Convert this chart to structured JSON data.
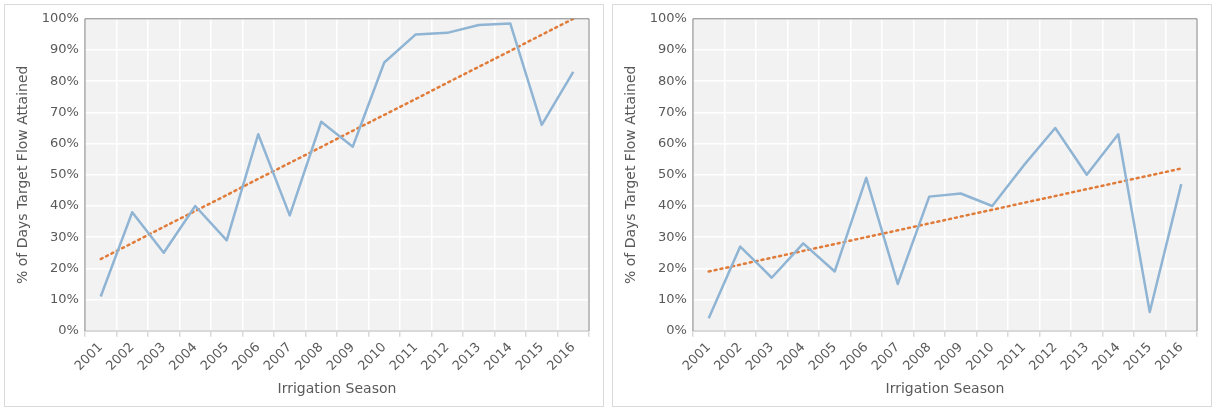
{
  "chart_data": [
    {
      "type": "line",
      "xlabel": "Irrigation Season",
      "ylabel": "% of Days Target Flow Attained",
      "categories": [
        "2001",
        "2002",
        "2003",
        "2004",
        "2005",
        "2006",
        "2007",
        "2008",
        "2009",
        "2010",
        "2011",
        "2012",
        "2013",
        "2014",
        "2015",
        "2016"
      ],
      "series": [
        {
          "color": "#8fb4d4",
          "line_style": "solid",
          "values": [
            11,
            38,
            25,
            40,
            29,
            63,
            37,
            67,
            59,
            86,
            95,
            95.5,
            98,
            98.5,
            66,
            83
          ]
        },
        {
          "color": "#e07b39",
          "line_style": "dotted",
          "values": [
            23,
            28.1,
            33.3,
            38.4,
            43.5,
            48.7,
            53.8,
            58.9,
            64.1,
            69.2,
            74.3,
            79.5,
            84.6,
            89.7,
            94.9,
            100
          ]
        }
      ],
      "ylim": [
        0,
        100
      ],
      "yticks": [
        {
          "value": 0,
          "label": "0%"
        },
        {
          "value": 10,
          "label": "10%"
        },
        {
          "value": 20,
          "label": "20%"
        },
        {
          "value": 30,
          "label": "30%"
        },
        {
          "value": 40,
          "label": "40%"
        },
        {
          "value": 50,
          "label": "50%"
        },
        {
          "value": 60,
          "label": "60%"
        },
        {
          "value": 70,
          "label": "70%"
        },
        {
          "value": 80,
          "label": "80%"
        },
        {
          "value": 90,
          "label": "90%"
        },
        {
          "value": 100,
          "label": "100%"
        }
      ],
      "grid": true,
      "legend": false,
      "marker": "none"
    },
    {
      "type": "line",
      "xlabel": "Irrigation Season",
      "ylabel": "% of Days Target Flow Attained",
      "categories": [
        "2001",
        "2002",
        "2003",
        "2004",
        "2005",
        "2006",
        "2007",
        "2008",
        "2009",
        "2010",
        "2011",
        "2012",
        "2013",
        "2014",
        "2015",
        "2016"
      ],
      "series": [
        {
          "color": "#8fb4d4",
          "line_style": "solid",
          "values": [
            4,
            27,
            17,
            28,
            19,
            49,
            15,
            43,
            44,
            40,
            53,
            65,
            50,
            63,
            6,
            47
          ]
        },
        {
          "color": "#e07b39",
          "line_style": "dotted",
          "values": [
            19,
            21.2,
            23.4,
            25.6,
            27.8,
            30,
            32.2,
            34.4,
            36.6,
            38.8,
            41,
            43.2,
            45.4,
            47.6,
            49.8,
            52
          ]
        }
      ],
      "ylim": [
        0,
        100
      ],
      "yticks": [
        {
          "value": 0,
          "label": "0%"
        },
        {
          "value": 10,
          "label": "10%"
        },
        {
          "value": 20,
          "label": "20%"
        },
        {
          "value": 30,
          "label": "30%"
        },
        {
          "value": 40,
          "label": "40%"
        },
        {
          "value": 50,
          "label": "50%"
        },
        {
          "value": 60,
          "label": "60%"
        },
        {
          "value": 70,
          "label": "70%"
        },
        {
          "value": 80,
          "label": "80%"
        },
        {
          "value": 90,
          "label": "90%"
        },
        {
          "value": 100,
          "label": "100%"
        }
      ],
      "grid": true,
      "legend": false,
      "marker": "none"
    }
  ]
}
